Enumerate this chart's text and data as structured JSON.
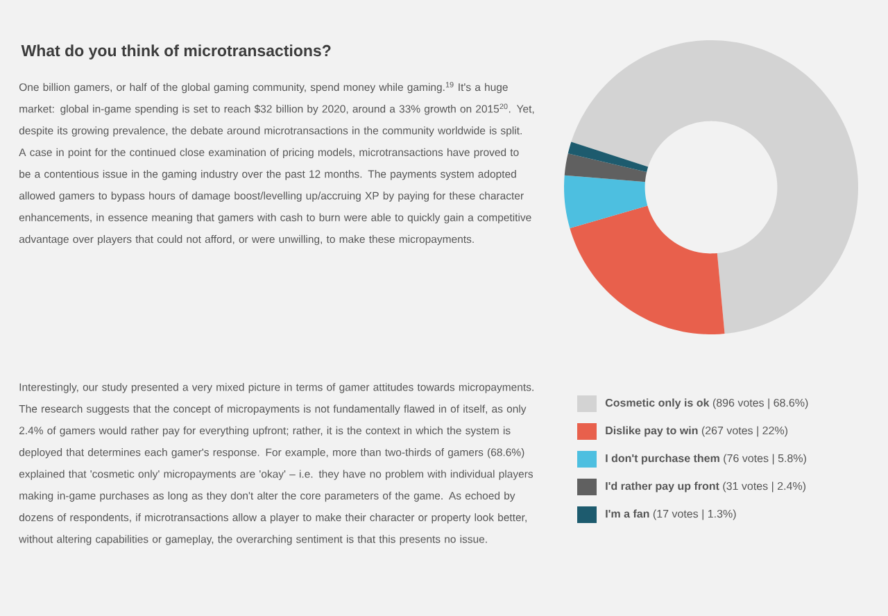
{
  "chart_data": {
    "type": "donut",
    "title": "What do you think of microtransactions?",
    "categories": [
      "**Cosmetic only is ok** (896 votes | 68.6%)",
      "**Dislike pay to win** (267 votes | 22%)",
      "**I don't purchase them** (76 votes | 5.8%)",
      "**I'd rather pay up front** (31 votes | 2.4%)",
      "**I'm a fan** (17 votes | 1.3%)"
    ],
    "values": [
      68.6,
      22,
      5.8,
      2.4,
      1.3
    ],
    "colors": [
      "#d3d3d3",
      "#e8604c",
      "#4dbfe0",
      "#606060",
      "#1d5b6e"
    ],
    "legend": "bottom",
    "annotations": [
      "One billion gamers, or half of the global gaming community, spend money while gaming.$^{19}$ It's a huge market: global in-game spending is set to reach $32 billion by 2020, around a 33% growth on 2015$^{20}$. Yet, despite its growing prevalence, the debate around microtransactions in the community worldwide is split. A case in point for the continued close examination of pricing models, microtransactions have proved to be a contentious issue in the gaming industry over the past 12 months. The payments system adopted allowed gamers to bypass hours of damage boost/levelling up/accruing XP by paying for these character enhancements, in essence meaning that gamers with cash to burn were able to quickly gain a competitive advantage over players that could not afford, or were unwilling, to make these micropayments.",
      "Interestingly, our study presented a very mixed picture in terms of gamer attitudes towards micropayments. The research suggests that the concept of micropayments is not fundamentally flawed in of itself, as only 2.4% of gamers would rather pay for everything upfront; rather, it is the context in which the system is deployed that determines each gamer's response. For example, more than two-thirds of gamers (68.6%) explained that 'cosmetic only' micropayments are 'okay' – i.e. they have no problem with individual players making in-game purchases as long as they don't alter the core parameters of the game. As echoed by dozens of respondents, if microtransactions allow a player to make their character or property look better, without altering capabilities or gameplay, the overarching sentiment is that this presents no issue."
    ]
  }
}
